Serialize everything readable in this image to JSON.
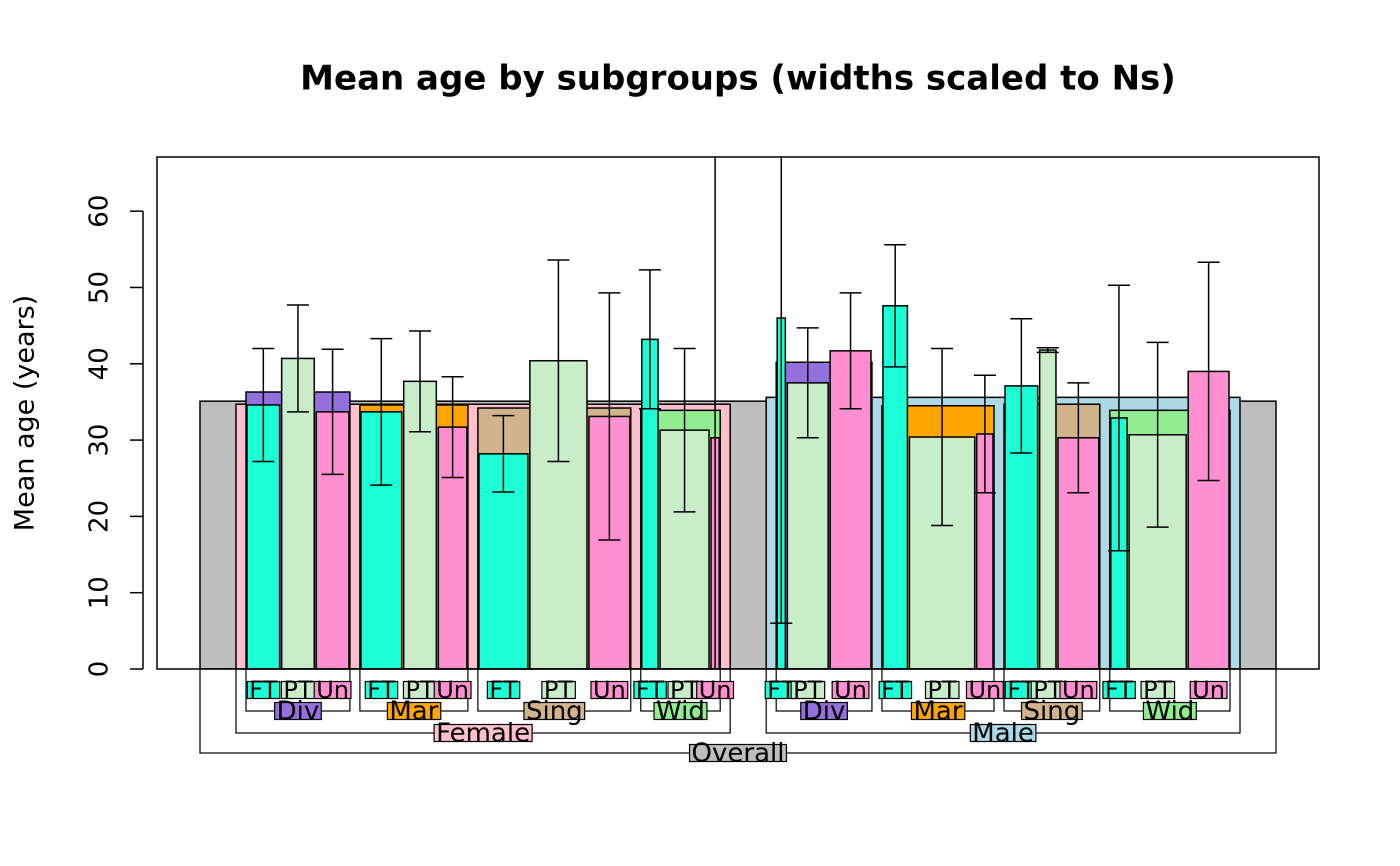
{
  "chart_data": {
    "type": "nested-bar",
    "title": "Mean age by subgroups (widths scaled to Ns)",
    "y_label": "Mean age (years)",
    "ylim": [
      0,
      67.1
    ],
    "yticks": [
      0,
      10,
      20,
      30,
      40,
      50,
      60
    ],
    "overall": {
      "label": "Overall",
      "color": "#bebebe",
      "value": 35.1,
      "groups": [
        {
          "label": "Female",
          "color": "#ffc0cb",
          "value": 34.7,
          "subgroups": [
            {
              "label": "Div",
              "color": "#9370db",
              "value": 36.3,
              "bars": [
                {
                  "label": "FT",
                  "color": "#1cffd6",
                  "value": 34.6,
                  "error": 7.4,
                  "n": 8
                },
                {
                  "label": "PT",
                  "color": "#c9ecc9",
                  "value": 40.7,
                  "error": 7.0,
                  "n": 8
                },
                {
                  "label": "Un",
                  "color": "#ff8fd0",
                  "value": 33.7,
                  "error": 8.2,
                  "n": 8
                }
              ]
            },
            {
              "label": "Mar",
              "color": "#ffa500",
              "value": 34.6,
              "bars": [
                {
                  "label": "FT",
                  "color": "#1cffd6",
                  "value": 33.7,
                  "error": 9.6,
                  "n": 10
                },
                {
                  "label": "PT",
                  "color": "#c9ecc9",
                  "value": 37.7,
                  "error": 6.6,
                  "n": 8
                },
                {
                  "label": "Un",
                  "color": "#ff8fd0",
                  "value": 31.7,
                  "error": 6.6,
                  "n": 7
                }
              ]
            },
            {
              "label": "Sing",
              "color": "#d2b48c",
              "value": 34.2,
              "bars": [
                {
                  "label": "FT",
                  "color": "#1cffd6",
                  "value": 28.2,
                  "error": 5.0,
                  "n": 12
                },
                {
                  "label": "PT",
                  "color": "#c9ecc9",
                  "value": 40.4,
                  "error": 13.2,
                  "n": 14
                },
                {
                  "label": "Un",
                  "color": "#ff8fd0",
                  "value": 33.1,
                  "error": 16.2,
                  "n": 10
                }
              ]
            },
            {
              "label": "Wid",
              "color": "#90ee90",
              "value": 33.9,
              "bars": [
                {
                  "label": "FT",
                  "color": "#1cffd6",
                  "value": 43.2,
                  "error": 9.1,
                  "n": 4
                },
                {
                  "label": "PT",
                  "color": "#c9ecc9",
                  "value": 31.3,
                  "error": 10.7,
                  "n": 12
                },
                {
                  "label": "Un",
                  "color": "#ff8fd0",
                  "value": 30.3,
                  "error": 40,
                  "n": 2
                }
              ]
            }
          ]
        },
        {
          "label": "Male",
          "color": "#add8e6",
          "value": 35.6,
          "subgroups": [
            {
              "label": "Div",
              "color": "#9370db",
              "value": 40.2,
              "bars": [
                {
                  "label": "FT",
                  "color": "#1cffd6",
                  "value": 46.0,
                  "error": 40,
                  "n": 2
                },
                {
                  "label": "PT",
                  "color": "#c9ecc9",
                  "value": 37.5,
                  "error": 7.2,
                  "n": 10
                },
                {
                  "label": "Un",
                  "color": "#ff8fd0",
                  "value": 41.7,
                  "error": 7.6,
                  "n": 10
                }
              ]
            },
            {
              "label": "Mar",
              "color": "#ffa500",
              "value": 34.5,
              "bars": [
                {
                  "label": "FT",
                  "color": "#1cffd6",
                  "value": 47.6,
                  "error": 8.0,
                  "n": 6
                },
                {
                  "label": "PT",
                  "color": "#c9ecc9",
                  "value": 30.4,
                  "error": 11.6,
                  "n": 16
                },
                {
                  "label": "Un",
                  "color": "#ff8fd0",
                  "value": 30.8,
                  "error": 7.7,
                  "n": 4
                }
              ]
            },
            {
              "label": "Sing",
              "color": "#d2b48c",
              "value": 34.7,
              "bars": [
                {
                  "label": "FT",
                  "color": "#1cffd6",
                  "value": 37.1,
                  "error": 8.8,
                  "n": 8
                },
                {
                  "label": "PT",
                  "color": "#c9ecc9",
                  "value": 41.8,
                  "error": 0.3,
                  "n": 4
                },
                {
                  "label": "Un",
                  "color": "#ff8fd0",
                  "value": 30.3,
                  "error": 7.2,
                  "n": 10
                }
              ]
            },
            {
              "label": "Wid",
              "color": "#90ee90",
              "value": 33.9,
              "bars": [
                {
                  "label": "FT",
                  "color": "#1cffd6",
                  "value": 32.9,
                  "error": 17.4,
                  "n": 4
                },
                {
                  "label": "PT",
                  "color": "#c9ecc9",
                  "value": 30.7,
                  "error": 12.1,
                  "n": 14
                },
                {
                  "label": "Un",
                  "color": "#ff8fd0",
                  "value": 39.0,
                  "error": 14.3,
                  "n": 10
                }
              ]
            }
          ]
        }
      ]
    }
  }
}
